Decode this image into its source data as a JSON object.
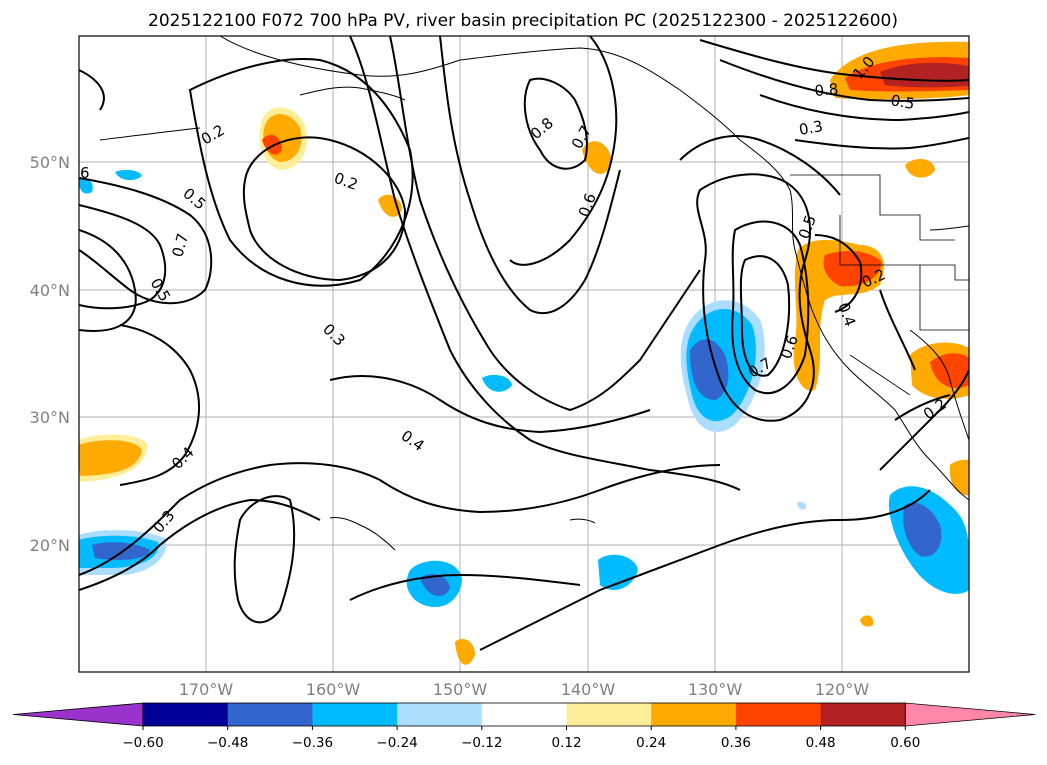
{
  "title": "2025122100 F072 700 hPa PV, river basin precipitation PC (2025122300 - 2025122600)",
  "lat_labels": [
    "50°N",
    "40°N",
    "30°N",
    "20°N"
  ],
  "lon_labels": [
    "170°W",
    "160°W",
    "150°W",
    "140°W",
    "130°W",
    "120°W"
  ],
  "contour_labels": [
    "0.2",
    "0.2",
    "0.8",
    "0.7",
    "0.6",
    "0.5",
    "0.7",
    "0.5",
    "0.3",
    "0.4",
    "0.4",
    "0.3",
    "1.0",
    "0.5",
    "0.8",
    "0.3",
    "0.5",
    "0.6",
    "0.4",
    "0.7",
    "0.2",
    "0.2",
    "6"
  ],
  "colorbar": {
    "colors": [
      "#9933cc",
      "#000099",
      "#3366cc",
      "#00bbff",
      "#aaddff",
      "#ffffff",
      "#ffee99",
      "#ffaa00",
      "#ff4400",
      "#b22222",
      "#ff88aa"
    ],
    "ticks": [
      "−0.60",
      "−0.48",
      "−0.36",
      "−0.24",
      "−0.12",
      "0.12",
      "0.24",
      "0.36",
      "0.48",
      "0.60"
    ]
  }
}
